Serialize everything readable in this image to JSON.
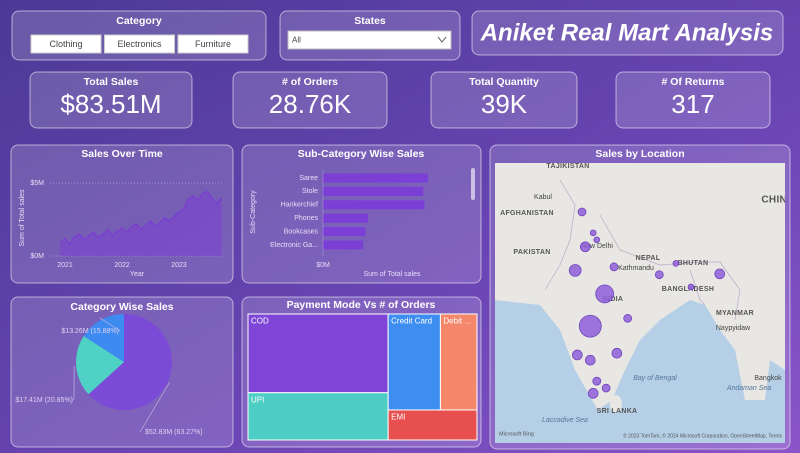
{
  "header": {
    "title": "Aniket Real Mart Analysis"
  },
  "filters": {
    "category": {
      "label": "Category",
      "options": [
        "Clothing",
        "Electronics",
        "Furniture"
      ]
    },
    "states": {
      "label": "States",
      "value": "All"
    }
  },
  "kpis": [
    {
      "label": "Total Sales",
      "value": "$83.51M"
    },
    {
      "label": "# of Orders",
      "value": "28.76K"
    },
    {
      "label": "Total Quantity",
      "value": "39K"
    },
    {
      "label": "# Of Returns",
      "value": "317"
    }
  ],
  "chart_data": [
    {
      "type": "line",
      "title": "Sales Over Time",
      "x_label": "Year",
      "y_label": "Sum of Total sales",
      "categories": [
        null,
        "2021",
        null,
        null,
        null,
        null,
        null,
        null,
        null,
        null,
        null,
        null,
        null,
        "2022",
        null,
        null,
        null,
        null,
        null,
        null,
        null,
        null,
        null,
        null,
        null,
        "2023",
        null,
        null,
        null,
        null,
        null,
        null,
        null,
        null,
        null
      ],
      "values": [
        0.9,
        1.2,
        0.8,
        1.3,
        1.5,
        1.1,
        1.4,
        1.6,
        1.3,
        1.5,
        1.8,
        1.4,
        1.7,
        1.9,
        1.6,
        2.0,
        2.2,
        1.8,
        2.1,
        2.4,
        2.0,
        2.3,
        2.6,
        2.4,
        2.7,
        3.0,
        3.2,
        3.9,
        4.1,
        3.8,
        4.3,
        4.4,
        3.9,
        3.6,
        4.0
      ],
      "color": "#7b3fd0",
      "ylim": [
        0,
        5.5
      ],
      "yticks": [
        {
          "value": 0,
          "label": "$0M"
        },
        {
          "value": 5,
          "label": "$5M"
        }
      ],
      "grid": true
    },
    {
      "type": "bar",
      "orientation": "horizontal",
      "title": "Sub-Category Wise Sales",
      "x_label": "Sum of Total sales",
      "y_label": "Sub-Category",
      "categories": [
        "Saree",
        "Stole",
        "Hankerchief",
        "Phones",
        "Bookcases",
        "Electronic Ga..."
      ],
      "values": [
        8.9,
        8.5,
        8.6,
        3.8,
        3.6,
        3.4
      ],
      "color": "#7b3fd6",
      "xlim": [
        0,
        10
      ],
      "xticks": [
        {
          "value": 0,
          "label": "$0M"
        }
      ]
    },
    {
      "type": "pie",
      "title": "Category Wise Sales",
      "values": [
        52.83,
        17.41,
        13.26
      ],
      "value_labels": [
        "$52.83M (63.27%)",
        "$17.41M (20.85%)",
        "$13.26M (15.88%)"
      ],
      "colors": [
        "#7b4bd8",
        "#4fd1c5",
        "#3d8bf0"
      ]
    },
    {
      "type": "treemap",
      "title": "Payment Mode Vs # of Orders",
      "categories": [
        "COD",
        "UPI",
        "Credit Card",
        "Debit ...",
        "EMI"
      ],
      "values": [
        11000,
        6600,
        5000,
        3500,
        2660
      ],
      "colors": [
        "#7e45d6",
        "#4ecdc4",
        "#3d8ef0",
        "#f4876a",
        "#e8504f"
      ]
    },
    {
      "type": "map",
      "title": "Sales by Location",
      "color": "#8e5ed8",
      "locations": [
        {
          "lon": 74.35,
          "lat": 32.9,
          "value": 1.3
        },
        {
          "lon": 75.9,
          "lat": 30.5,
          "value": 0.7
        },
        {
          "lon": 74.8,
          "lat": 28.9,
          "value": 2.0
        },
        {
          "lon": 76.4,
          "lat": 29.7,
          "value": 0.7
        },
        {
          "lon": 73.4,
          "lat": 26.2,
          "value": 2.9
        },
        {
          "lon": 78.8,
          "lat": 26.6,
          "value": 1.3
        },
        {
          "lon": 85.1,
          "lat": 25.7,
          "value": 1.3
        },
        {
          "lon": 87.4,
          "lat": 27.0,
          "value": 0.7
        },
        {
          "lon": 93.5,
          "lat": 25.8,
          "value": 2.0
        },
        {
          "lon": 89.5,
          "lat": 24.3,
          "value": 0.7
        },
        {
          "lon": 77.5,
          "lat": 23.5,
          "value": 6.6
        },
        {
          "lon": 75.5,
          "lat": 19.8,
          "value": 9.9
        },
        {
          "lon": 80.7,
          "lat": 20.7,
          "value": 1.3
        },
        {
          "lon": 79.2,
          "lat": 16.7,
          "value": 2.0
        },
        {
          "lon": 73.7,
          "lat": 16.5,
          "value": 2.0
        },
        {
          "lon": 75.5,
          "lat": 15.9,
          "value": 2.0
        },
        {
          "lon": 76.4,
          "lat": 13.5,
          "value": 1.3
        },
        {
          "lon": 77.7,
          "lat": 12.7,
          "value": 1.3
        },
        {
          "lon": 75.9,
          "lat": 12.1,
          "value": 2.0
        }
      ],
      "labels": [
        "TAJIKISTAN",
        "Kabul",
        "AFGHANISTAN",
        "PAKISTAN",
        "New Delhi",
        "NEPAL",
        "Kathmandu",
        "BHUTAN",
        "BANGLADESH",
        "INDIA",
        "MYANMAR",
        "Naypyidaw",
        "Bay of Bengal",
        "Andaman Sea",
        "Bangkok",
        "SRI LANKA",
        "Laccadive Sea",
        "CHINA"
      ],
      "provider": "Microsoft Bing",
      "attribution": "© 2023 TomTom, © 2024 Microsoft Corporation, OpenStreetMap, Terms"
    }
  ]
}
